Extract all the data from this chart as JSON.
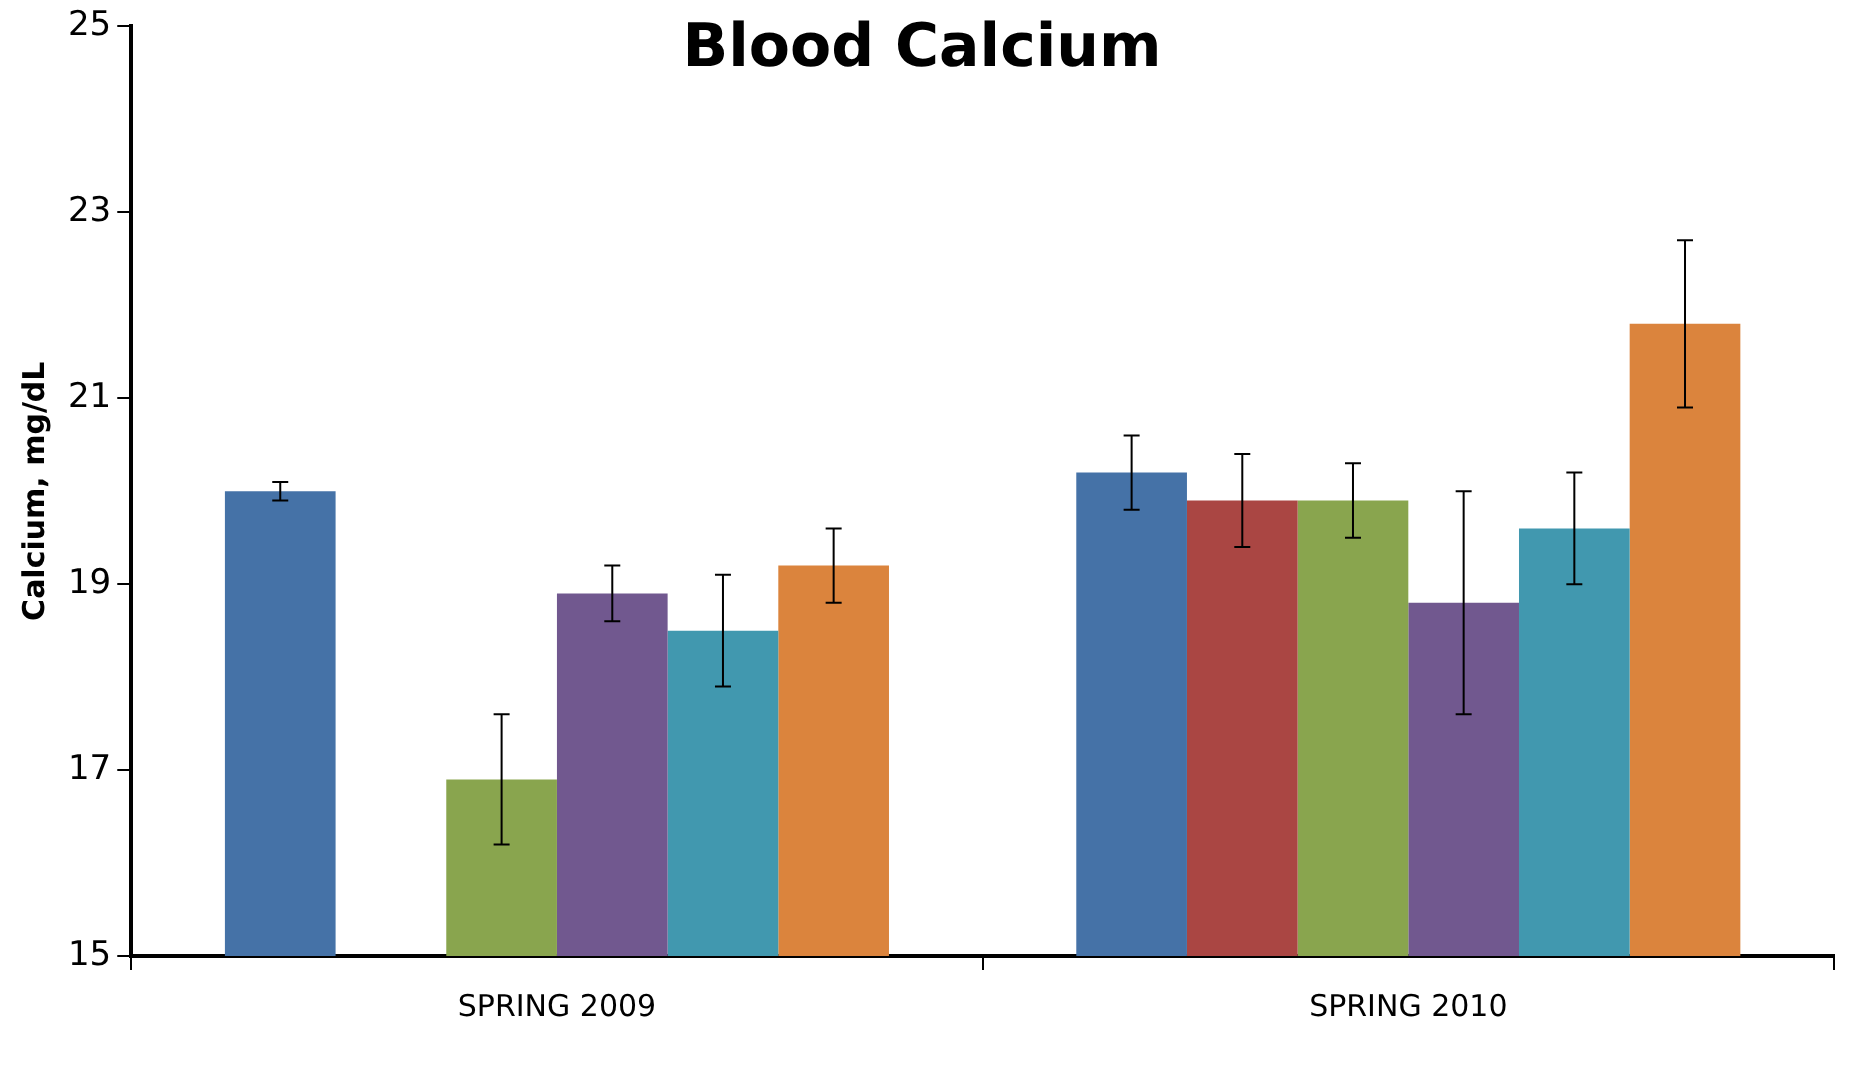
{
  "chart_data": {
    "type": "bar",
    "title": "Blood Calcium",
    "ylabel": "Calcium, mg/dL",
    "categories": [
      "SPRING 2009",
      "SPRING 2010"
    ],
    "series": [
      {
        "color": "#4572a7",
        "values": [
          20.0,
          20.2
        ],
        "errors": [
          [
            19.9,
            20.1
          ],
          [
            19.8,
            20.6
          ]
        ]
      },
      {
        "color": "#aa4643",
        "values": [
          null,
          19.9
        ],
        "errors": [
          null,
          [
            19.4,
            20.4
          ]
        ]
      },
      {
        "color": "#89a54e",
        "values": [
          16.9,
          19.9
        ],
        "errors": [
          [
            16.2,
            17.6
          ],
          [
            19.5,
            20.3
          ]
        ]
      },
      {
        "color": "#71588f",
        "values": [
          18.9,
          18.8
        ],
        "errors": [
          [
            18.6,
            19.2
          ],
          [
            17.6,
            20.0
          ]
        ]
      },
      {
        "color": "#4198af",
        "values": [
          18.5,
          19.6
        ],
        "errors": [
          [
            17.9,
            19.1
          ],
          [
            19.0,
            20.2
          ]
        ]
      },
      {
        "color": "#db843d",
        "values": [
          19.2,
          21.8
        ],
        "errors": [
          [
            18.8,
            19.6
          ],
          [
            20.9,
            22.7
          ]
        ]
      }
    ],
    "ylim": [
      15,
      25
    ],
    "yticks": [
      15,
      17,
      19,
      21,
      23,
      25
    ],
    "grid": false,
    "legend": false
  }
}
